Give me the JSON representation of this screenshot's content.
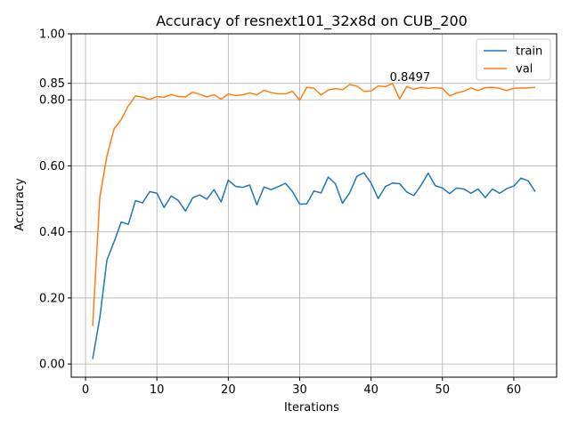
{
  "chart_data": {
    "type": "line",
    "title": "Accuracy of resnext101_32x8d on CUB_200",
    "xlabel": "Iterations",
    "ylabel": "Accuracy",
    "xlim": [
      -2,
      66
    ],
    "ylim": [
      -0.04,
      1.0
    ],
    "xticks": [
      0,
      10,
      20,
      30,
      40,
      50,
      60
    ],
    "yticks": [
      0.0,
      0.2,
      0.4,
      0.6,
      0.8,
      0.85,
      1.0
    ],
    "ytick_labels": [
      "0.00",
      "0.20",
      "0.40",
      "0.60",
      "0.80",
      "0.85",
      "1.00"
    ],
    "grid": true,
    "legend_position": "top-right",
    "x": [
      1,
      2,
      3,
      4,
      5,
      6,
      7,
      8,
      9,
      10,
      11,
      12,
      13,
      14,
      15,
      16,
      17,
      18,
      19,
      20,
      21,
      22,
      23,
      24,
      25,
      26,
      27,
      28,
      29,
      30,
      31,
      32,
      33,
      34,
      35,
      36,
      37,
      38,
      39,
      40,
      41,
      42,
      43,
      44,
      45,
      46,
      47,
      48,
      49,
      50,
      51,
      52,
      53,
      54,
      55,
      56,
      57,
      58,
      59,
      60,
      61,
      62,
      63
    ],
    "series": [
      {
        "name": "train",
        "color": "#1f77b4",
        "values": [
          0.015,
          0.14,
          0.315,
          0.37,
          0.43,
          0.423,
          0.495,
          0.488,
          0.522,
          0.517,
          0.474,
          0.509,
          0.495,
          0.463,
          0.503,
          0.512,
          0.499,
          0.528,
          0.491,
          0.557,
          0.538,
          0.535,
          0.542,
          0.482,
          0.536,
          0.528,
          0.537,
          0.547,
          0.522,
          0.484,
          0.485,
          0.524,
          0.518,
          0.566,
          0.546,
          0.487,
          0.518,
          0.568,
          0.579,
          0.548,
          0.501,
          0.537,
          0.548,
          0.546,
          0.521,
          0.51,
          0.541,
          0.578,
          0.54,
          0.533,
          0.516,
          0.533,
          0.53,
          0.517,
          0.53,
          0.504,
          0.53,
          0.517,
          0.531,
          0.539,
          0.563,
          0.555,
          0.522
        ]
      },
      {
        "name": "val",
        "color": "#ff7f0e",
        "values": [
          0.115,
          0.505,
          0.63,
          0.712,
          0.74,
          0.782,
          0.812,
          0.808,
          0.801,
          0.81,
          0.808,
          0.816,
          0.81,
          0.809,
          0.823,
          0.817,
          0.809,
          0.815,
          0.802,
          0.818,
          0.813,
          0.815,
          0.821,
          0.815,
          0.829,
          0.822,
          0.818,
          0.818,
          0.826,
          0.799,
          0.838,
          0.835,
          0.815,
          0.83,
          0.834,
          0.831,
          0.846,
          0.842,
          0.826,
          0.827,
          0.842,
          0.84,
          0.8497,
          0.803,
          0.84,
          0.832,
          0.838,
          0.835,
          0.837,
          0.835,
          0.812,
          0.821,
          0.826,
          0.836,
          0.828,
          0.837,
          0.838,
          0.835,
          0.828,
          0.835,
          0.836,
          0.836,
          0.838
        ]
      }
    ],
    "annotations": [
      {
        "text": "0.8497",
        "x": 43,
        "y": 0.8497
      }
    ]
  }
}
